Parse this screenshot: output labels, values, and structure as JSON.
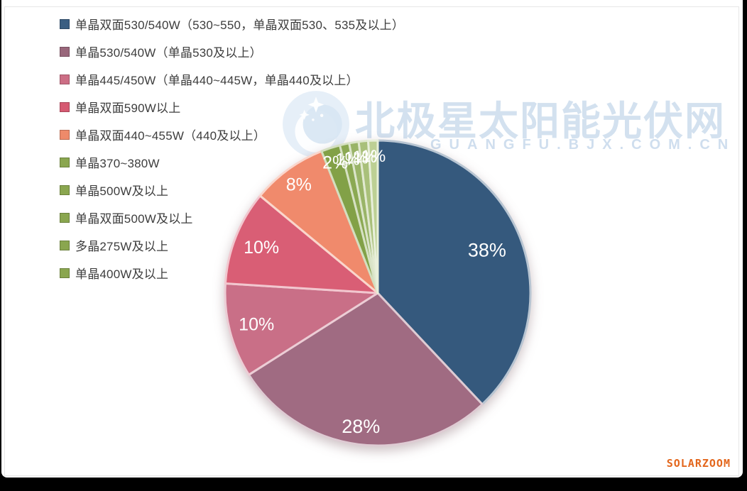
{
  "chart_data": {
    "type": "pie",
    "title": "",
    "values_unit": "%",
    "legend_position": "top-left",
    "direction": "clockwise",
    "start_angle_deg": 0,
    "items": [
      {
        "label": "单晶双面530/540W（530~550，单晶双面530、535及以上）",
        "value": 38,
        "display": "38%",
        "color": "#35597D",
        "swatch": "#3A5E82"
      },
      {
        "label": "单晶530/540W（单晶530及以上）",
        "value": 28,
        "display": "28%",
        "color": "#A06B82",
        "swatch": "#99677B"
      },
      {
        "label": "单晶445/450W（单晶440~445W，单晶440及以上）",
        "value": 10,
        "display": "10%",
        "color": "#C96F87",
        "swatch": "#CC6E85"
      },
      {
        "label": "单晶双面590W以上",
        "value": 10,
        "display": "10%",
        "color": "#D95E75",
        "swatch": "#D65A72"
      },
      {
        "label": "单晶双面440~455W（440及以上）",
        "value": 8,
        "display": "8%",
        "color": "#F08A6C",
        "swatch": "#EE8A6A"
      },
      {
        "label": "单晶370~380W",
        "value": 2,
        "display": "2%",
        "color": "#82A147",
        "swatch": "#8AA64F"
      },
      {
        "label": "单晶500W及以上",
        "value": 1,
        "display": "1%",
        "color": "#8BA953",
        "swatch": "#8AA64F"
      },
      {
        "label": "单晶双面500W及以上",
        "value": 1,
        "display": "1%",
        "color": "#99B467",
        "swatch": "#8AA64F"
      },
      {
        "label": "多晶275W及以上",
        "value": 1,
        "display": "1%",
        "color": "#A9C07A",
        "swatch": "#8AA64F"
      },
      {
        "label": "单晶400W及以上",
        "value": 1,
        "display": "1%",
        "color": "#BDD094",
        "swatch": "#8AA64F"
      }
    ]
  },
  "watermark": {
    "site_name": "北极星太阳能光伏网",
    "site_url": "GUANGFU.BJX.COM.CN"
  },
  "footer": {
    "brand": "SOLARZOOM",
    "brand_color": "#E3661C"
  }
}
